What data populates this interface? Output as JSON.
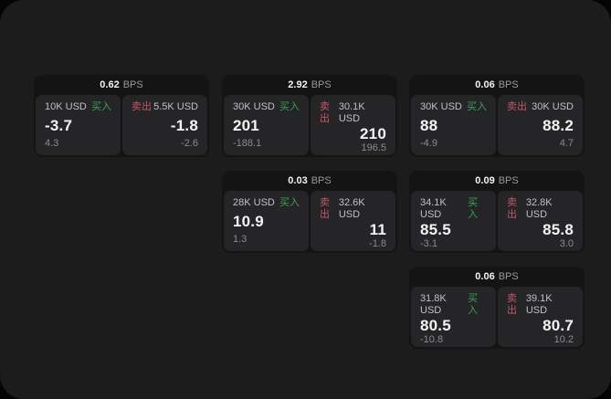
{
  "colors": {
    "outside_background": "#050505",
    "screen_background": "#1c1c1d",
    "card_background": "#141415",
    "panel_background": "#252527",
    "buy_green": "#3aa15a",
    "sell_red": "#c3566a",
    "primary_text": "#f4f4f5",
    "secondary_text": "#c1c1c4",
    "muted_text": "#8b8b90"
  },
  "labels": {
    "bps_unit": "BPS",
    "buy": "买入",
    "sell": "卖出"
  },
  "cards": [
    {
      "bps": "0.62",
      "buy": {
        "amount": "10K USD",
        "price": "-3.7",
        "sub": "4.3"
      },
      "sell": {
        "amount": "5.5K USD",
        "price": "-1.8",
        "sub": "-2.6"
      }
    },
    {
      "bps": "2.92",
      "buy": {
        "amount": "30K USD",
        "price": "201",
        "sub": "-188.1"
      },
      "sell": {
        "amount": "30.1K USD",
        "price": "210",
        "sub": "196.5"
      }
    },
    {
      "bps": "0.06",
      "buy": {
        "amount": "30K USD",
        "price": "88",
        "sub": "-4.9"
      },
      "sell": {
        "amount": "30K USD",
        "price": "88.2",
        "sub": "4.7"
      }
    },
    {
      "bps": "0.03",
      "buy": {
        "amount": "28K USD",
        "price": "10.9",
        "sub": "1.3"
      },
      "sell": {
        "amount": "32.6K USD",
        "price": "11",
        "sub": "-1.8"
      }
    },
    {
      "bps": "0.09",
      "buy": {
        "amount": "34.1K USD",
        "price": "85.5",
        "sub": "-3.1"
      },
      "sell": {
        "amount": "32.8K USD",
        "price": "85.8",
        "sub": "3.0"
      }
    },
    {
      "bps": "0.06",
      "buy": {
        "amount": "31.8K USD",
        "price": "80.5",
        "sub": "-10.8"
      },
      "sell": {
        "amount": "39.1K USD",
        "price": "80.7",
        "sub": "10.2"
      }
    }
  ]
}
